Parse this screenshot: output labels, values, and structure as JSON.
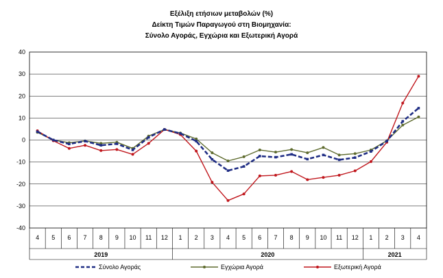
{
  "chart_data": {
    "type": "line",
    "title": [
      "Εξέλιξη ετήσιων μεταβολών (%)",
      "Δείκτη Τιμών Παραγωγού στη Βιομηχανία:",
      "Σύνολο Αγοράς, Εγχώρια και Εξωτερική Αγορά"
    ],
    "ylim": [
      -40,
      40
    ],
    "yticks": [
      40,
      30,
      20,
      10,
      0,
      -10,
      -20,
      -30,
      -40
    ],
    "categories": [
      "4",
      "5",
      "6",
      "7",
      "8",
      "9",
      "10",
      "11",
      "12",
      "1",
      "2",
      "3",
      "4",
      "5",
      "6",
      "7",
      "8",
      "9",
      "10",
      "11",
      "12",
      "1",
      "2",
      "3",
      "4"
    ],
    "years": [
      {
        "label": "2019",
        "from": 0,
        "to": 8
      },
      {
        "label": "2020",
        "from": 9,
        "to": 20
      },
      {
        "label": "2021",
        "from": 21,
        "to": 24
      }
    ],
    "grid": "horizontal",
    "legend_position": "bottom",
    "series": [
      {
        "name": "Σύνολο Αγοράς",
        "color": "#1f2d84",
        "style": "dashed",
        "values": [
          3.8,
          0.0,
          -1.8,
          -0.5,
          -2.4,
          -1.7,
          -4.5,
          1.2,
          4.8,
          3.0,
          -0.5,
          -8.8,
          -13.9,
          -12.0,
          -7.3,
          -7.8,
          -6.5,
          -8.7,
          -6.8,
          -9.0,
          -8.0,
          -5.2,
          -0.5,
          8.5,
          14.5
        ]
      },
      {
        "name": "Εγχώρια Αγορά",
        "color": "#5e6b2e",
        "style": "solid",
        "values": [
          3.5,
          0.0,
          -1.2,
          -0.4,
          -1.5,
          -1.0,
          -3.8,
          1.8,
          4.8,
          3.2,
          0.5,
          -5.8,
          -9.5,
          -7.6,
          -4.5,
          -5.5,
          -4.3,
          -5.8,
          -3.4,
          -6.8,
          -6.2,
          -4.5,
          -0.3,
          6.8,
          10.5
        ]
      },
      {
        "name": "Εξωτερική Αγορά",
        "color": "#c0161c",
        "style": "solid",
        "values": [
          4.2,
          -0.3,
          -3.8,
          -2.4,
          -4.8,
          -4.3,
          -6.5,
          -1.5,
          4.8,
          2.5,
          -5.0,
          -19.2,
          -27.5,
          -24.5,
          -16.3,
          -16.0,
          -14.3,
          -18.0,
          -17.0,
          -16.0,
          -14.0,
          -9.8,
          -1.0,
          16.8,
          29.0
        ]
      }
    ]
  }
}
